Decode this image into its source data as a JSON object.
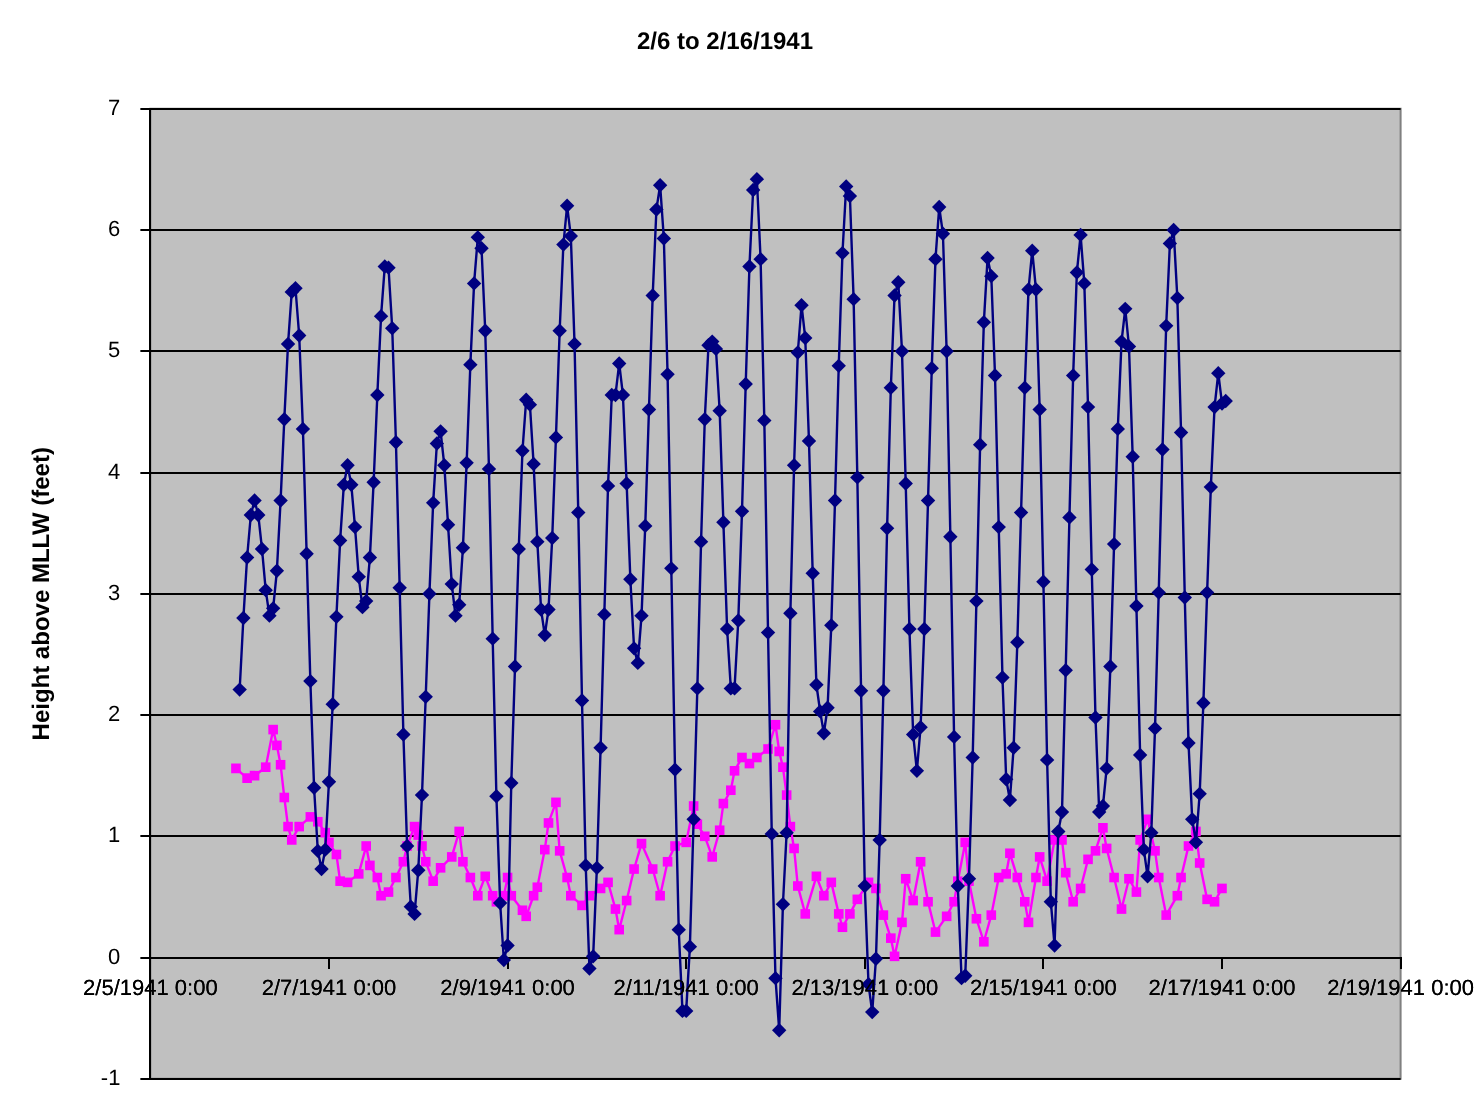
{
  "chart_data": {
    "type": "line",
    "title": "2/6 to 2/16/1941",
    "ylabel": "Height above MLLW (feet)",
    "xlim": [
      "1941-02-05T00:00",
      "1941-02-19T00:00"
    ],
    "xticks": [
      {
        "value": "1941-02-05T00:00",
        "label": "2/5/1941 0:00"
      },
      {
        "value": "1941-02-07T00:00",
        "label": "2/7/1941 0:00"
      },
      {
        "value": "1941-02-09T00:00",
        "label": "2/9/1941 0:00"
      },
      {
        "value": "1941-02-11T00:00",
        "label": "2/11/1941 0:00"
      },
      {
        "value": "1941-02-13T00:00",
        "label": "2/13/1941 0:00"
      },
      {
        "value": "1941-02-15T00:00",
        "label": "2/15/1941 0:00"
      },
      {
        "value": "1941-02-17T00:00",
        "label": "2/17/1941 0:00"
      },
      {
        "value": "1941-02-19T00:00",
        "label": "2/19/1941 0:00"
      }
    ],
    "ylim": [
      -1,
      7
    ],
    "yticks": [
      -1,
      0,
      1,
      2,
      3,
      4,
      5,
      6,
      7
    ],
    "grid": "y",
    "legend": false,
    "line_style": "solid",
    "series": [
      {
        "color": "#000080",
        "marker": "diamond",
        "x": [
          "1941-02-06T00:00",
          "1941-02-06T01:00",
          "1941-02-06T02:00",
          "1941-02-06T03:00",
          "1941-02-06T04:00",
          "1941-02-06T05:00",
          "1941-02-06T06:00",
          "1941-02-06T07:00",
          "1941-02-06T08:00",
          "1941-02-06T09:00",
          "1941-02-06T10:00",
          "1941-02-06T11:00",
          "1941-02-06T12:00",
          "1941-02-06T13:00",
          "1941-02-06T14:00",
          "1941-02-06T15:00",
          "1941-02-06T16:00",
          "1941-02-06T17:00",
          "1941-02-06T18:00",
          "1941-02-06T19:00",
          "1941-02-06T20:00",
          "1941-02-06T21:00",
          "1941-02-06T22:00",
          "1941-02-06T23:00",
          "1941-02-07T00:00",
          "1941-02-07T01:00",
          "1941-02-07T02:00",
          "1941-02-07T03:00",
          "1941-02-07T04:00",
          "1941-02-07T05:00",
          "1941-02-07T06:00",
          "1941-02-07T07:00",
          "1941-02-07T08:00",
          "1941-02-07T09:00",
          "1941-02-07T10:00",
          "1941-02-07T11:00",
          "1941-02-07T12:00",
          "1941-02-07T13:00",
          "1941-02-07T14:00",
          "1941-02-07T15:00",
          "1941-02-07T16:00",
          "1941-02-07T17:00",
          "1941-02-07T18:00",
          "1941-02-07T19:00",
          "1941-02-07T20:00",
          "1941-02-07T21:00",
          "1941-02-07T22:00",
          "1941-02-07T23:00",
          "1941-02-08T00:00",
          "1941-02-08T01:00",
          "1941-02-08T02:00",
          "1941-02-08T03:00",
          "1941-02-08T04:00",
          "1941-02-08T05:00",
          "1941-02-08T06:00",
          "1941-02-08T07:00",
          "1941-02-08T08:00",
          "1941-02-08T09:00",
          "1941-02-08T10:00",
          "1941-02-08T11:00",
          "1941-02-08T12:00",
          "1941-02-08T13:00",
          "1941-02-08T14:00",
          "1941-02-08T15:00",
          "1941-02-08T16:00",
          "1941-02-08T17:00",
          "1941-02-08T18:00",
          "1941-02-08T19:00",
          "1941-02-08T20:00",
          "1941-02-08T21:00",
          "1941-02-08T22:00",
          "1941-02-08T23:00",
          "1941-02-09T00:00",
          "1941-02-09T01:00",
          "1941-02-09T02:00",
          "1941-02-09T03:00",
          "1941-02-09T04:00",
          "1941-02-09T05:00",
          "1941-02-09T06:00",
          "1941-02-09T07:00",
          "1941-02-09T08:00",
          "1941-02-09T09:00",
          "1941-02-09T10:00",
          "1941-02-09T11:00",
          "1941-02-09T12:00",
          "1941-02-09T13:00",
          "1941-02-09T14:00",
          "1941-02-09T15:00",
          "1941-02-09T16:00",
          "1941-02-09T17:00",
          "1941-02-09T18:00",
          "1941-02-09T19:00",
          "1941-02-09T20:00",
          "1941-02-09T21:00",
          "1941-02-09T22:00",
          "1941-02-09T23:00",
          "1941-02-10T00:00",
          "1941-02-10T01:00",
          "1941-02-10T02:00",
          "1941-02-10T03:00",
          "1941-02-10T04:00",
          "1941-02-10T05:00",
          "1941-02-10T06:00",
          "1941-02-10T07:00",
          "1941-02-10T08:00",
          "1941-02-10T09:00",
          "1941-02-10T10:00",
          "1941-02-10T11:00",
          "1941-02-10T12:00",
          "1941-02-10T13:00",
          "1941-02-10T14:00",
          "1941-02-10T15:00",
          "1941-02-10T16:00",
          "1941-02-10T17:00",
          "1941-02-10T18:00",
          "1941-02-10T19:00",
          "1941-02-10T20:00",
          "1941-02-10T21:00",
          "1941-02-10T22:00",
          "1941-02-10T23:00",
          "1941-02-11T00:00",
          "1941-02-11T01:00",
          "1941-02-11T02:00",
          "1941-02-11T03:00",
          "1941-02-11T04:00",
          "1941-02-11T05:00",
          "1941-02-11T06:00",
          "1941-02-11T07:00",
          "1941-02-11T08:00",
          "1941-02-11T09:00",
          "1941-02-11T10:00",
          "1941-02-11T11:00",
          "1941-02-11T12:00",
          "1941-02-11T13:00",
          "1941-02-11T14:00",
          "1941-02-11T15:00",
          "1941-02-11T16:00",
          "1941-02-11T17:00",
          "1941-02-11T18:00",
          "1941-02-11T19:00",
          "1941-02-11T20:00",
          "1941-02-11T21:00",
          "1941-02-11T22:00",
          "1941-02-11T23:00",
          "1941-02-12T00:00",
          "1941-02-12T01:00",
          "1941-02-12T02:00",
          "1941-02-12T03:00",
          "1941-02-12T04:00",
          "1941-02-12T05:00",
          "1941-02-12T06:00",
          "1941-02-12T07:00",
          "1941-02-12T08:00",
          "1941-02-12T09:00",
          "1941-02-12T10:00",
          "1941-02-12T11:00",
          "1941-02-12T12:00",
          "1941-02-12T13:00",
          "1941-02-12T14:00",
          "1941-02-12T15:00",
          "1941-02-12T16:00",
          "1941-02-12T17:00",
          "1941-02-12T18:00",
          "1941-02-12T19:00",
          "1941-02-12T20:00",
          "1941-02-12T21:00",
          "1941-02-12T22:00",
          "1941-02-12T23:00",
          "1941-02-13T00:00",
          "1941-02-13T01:00",
          "1941-02-13T02:00",
          "1941-02-13T03:00",
          "1941-02-13T04:00",
          "1941-02-13T05:00",
          "1941-02-13T06:00",
          "1941-02-13T07:00",
          "1941-02-13T08:00",
          "1941-02-13T09:00",
          "1941-02-13T10:00",
          "1941-02-13T11:00",
          "1941-02-13T12:00",
          "1941-02-13T13:00",
          "1941-02-13T14:00",
          "1941-02-13T15:00",
          "1941-02-13T16:00",
          "1941-02-13T17:00",
          "1941-02-13T18:00",
          "1941-02-13T19:00",
          "1941-02-13T20:00",
          "1941-02-13T21:00",
          "1941-02-13T22:00",
          "1941-02-13T23:00",
          "1941-02-14T00:00",
          "1941-02-14T01:00",
          "1941-02-14T02:00",
          "1941-02-14T03:00",
          "1941-02-14T04:00",
          "1941-02-14T05:00",
          "1941-02-14T06:00",
          "1941-02-14T07:00",
          "1941-02-14T08:00",
          "1941-02-14T09:00",
          "1941-02-14T10:00",
          "1941-02-14T11:00",
          "1941-02-14T12:00",
          "1941-02-14T13:00",
          "1941-02-14T14:00",
          "1941-02-14T15:00",
          "1941-02-14T16:00",
          "1941-02-14T17:00",
          "1941-02-14T18:00",
          "1941-02-14T19:00",
          "1941-02-14T20:00",
          "1941-02-14T21:00",
          "1941-02-14T22:00",
          "1941-02-14T23:00",
          "1941-02-15T00:00",
          "1941-02-15T01:00",
          "1941-02-15T02:00",
          "1941-02-15T03:00",
          "1941-02-15T04:00",
          "1941-02-15T05:00",
          "1941-02-15T06:00",
          "1941-02-15T07:00",
          "1941-02-15T08:00",
          "1941-02-15T09:00",
          "1941-02-15T10:00",
          "1941-02-15T11:00",
          "1941-02-15T12:00",
          "1941-02-15T13:00",
          "1941-02-15T14:00",
          "1941-02-15T15:00",
          "1941-02-15T16:00",
          "1941-02-15T17:00",
          "1941-02-15T18:00",
          "1941-02-15T19:00",
          "1941-02-15T20:00",
          "1941-02-15T21:00",
          "1941-02-15T22:00",
          "1941-02-15T23:00",
          "1941-02-16T00:00",
          "1941-02-16T01:00",
          "1941-02-16T02:00",
          "1941-02-16T03:00",
          "1941-02-16T04:00",
          "1941-02-16T05:00",
          "1941-02-16T06:00",
          "1941-02-16T07:00",
          "1941-02-16T08:00",
          "1941-02-16T09:00",
          "1941-02-16T10:00",
          "1941-02-16T11:00",
          "1941-02-16T12:00",
          "1941-02-16T13:00",
          "1941-02-16T14:00",
          "1941-02-16T15:00",
          "1941-02-16T16:00",
          "1941-02-16T17:00",
          "1941-02-16T18:00",
          "1941-02-16T19:00",
          "1941-02-16T20:00",
          "1941-02-16T21:00",
          "1941-02-16T22:00",
          "1941-02-16T23:00",
          "1941-02-17T00:00",
          "1941-02-17T01:00"
        ],
        "values": [
          2.21,
          2.8,
          3.3,
          3.65,
          3.77,
          3.65,
          3.37,
          3.03,
          2.82,
          2.88,
          3.19,
          3.77,
          4.44,
          5.06,
          5.49,
          5.52,
          5.13,
          4.36,
          3.33,
          2.28,
          1.4,
          0.88,
          0.73,
          0.89,
          1.45,
          2.09,
          2.81,
          3.44,
          3.9,
          4.06,
          3.9,
          3.55,
          3.14,
          2.89,
          2.94,
          3.3,
          3.92,
          4.64,
          5.29,
          5.7,
          5.69,
          5.19,
          4.25,
          3.05,
          1.84,
          0.92,
          0.42,
          0.36,
          0.72,
          1.34,
          2.15,
          3.0,
          3.75,
          4.24,
          4.34,
          4.06,
          3.57,
          3.08,
          2.82,
          2.91,
          3.38,
          4.08,
          4.89,
          5.56,
          5.94,
          5.85,
          5.17,
          4.03,
          2.63,
          1.33,
          0.45,
          -0.02,
          0.1,
          1.44,
          2.4,
          3.37,
          4.18,
          4.6,
          4.56,
          4.07,
          3.43,
          2.87,
          2.66,
          2.87,
          3.46,
          4.29,
          5.17,
          5.88,
          6.2,
          5.95,
          5.06,
          3.67,
          2.12,
          0.76,
          -0.09,
          0.01,
          0.74,
          1.73,
          2.83,
          3.89,
          4.64,
          4.64,
          4.9,
          4.64,
          3.91,
          3.12,
          2.55,
          2.43,
          2.82,
          3.56,
          4.52,
          5.46,
          6.17,
          6.37,
          5.93,
          4.81,
          3.21,
          1.55,
          0.23,
          -0.44,
          -0.44,
          0.09,
          1.14,
          2.22,
          3.43,
          4.44,
          5.05,
          5.08,
          5.02,
          4.51,
          3.59,
          2.71,
          2.22,
          2.22,
          2.78,
          3.68,
          4.73,
          5.7,
          6.33,
          6.42,
          5.76,
          4.43,
          2.68,
          1.02,
          -0.17,
          -0.6,
          0.44,
          1.03,
          2.84,
          4.06,
          4.99,
          5.38,
          5.11,
          4.26,
          3.17,
          2.25,
          2.03,
          1.85,
          2.06,
          2.74,
          3.77,
          4.88,
          5.81,
          6.36,
          6.28,
          5.43,
          3.96,
          2.2,
          0.59,
          -0.22,
          -0.45,
          -0.01,
          0.97,
          2.2,
          3.54,
          4.7,
          5.46,
          5.57,
          5.0,
          3.91,
          2.71,
          1.84,
          1.54,
          1.9,
          2.71,
          3.77,
          4.86,
          5.76,
          6.19,
          5.97,
          5.0,
          3.47,
          1.82,
          0.59,
          -0.17,
          -0.15,
          0.65,
          1.65,
          2.94,
          4.23,
          5.24,
          5.77,
          5.62,
          4.8,
          3.55,
          2.31,
          1.47,
          1.3,
          1.73,
          2.6,
          3.67,
          4.7,
          5.51,
          5.83,
          5.51,
          4.52,
          3.1,
          1.63,
          0.46,
          0.1,
          1.04,
          1.2,
          2.37,
          3.63,
          4.8,
          5.65,
          5.96,
          5.56,
          4.54,
          3.2,
          1.98,
          1.2,
          1.25,
          1.56,
          2.4,
          3.41,
          4.36,
          5.08,
          5.35,
          5.04,
          4.13,
          2.9,
          1.67,
          0.89,
          0.67,
          1.03,
          1.89,
          3.01,
          4.19,
          5.21,
          5.89,
          6.0,
          5.44,
          4.33,
          2.97,
          1.77,
          1.14,
          0.95,
          1.35,
          2.1,
          3.01,
          3.88,
          4.54,
          4.82,
          4.57,
          4.59
        ]
      },
      {
        "color": "#ff00ff",
        "marker": "square",
        "x": [
          "1941-02-05T23:00",
          "1941-02-06T02:00",
          "1941-02-06T04:00",
          "1941-02-06T07:00",
          "1941-02-06T09:00",
          "1941-02-06T10:00",
          "1941-02-06T11:00",
          "1941-02-06T12:00",
          "1941-02-06T13:00",
          "1941-02-06T14:00",
          "1941-02-06T16:00",
          "1941-02-06T19:00",
          "1941-02-06T21:00",
          "1941-02-06T23:00",
          "1941-02-07T00:00",
          "1941-02-07T02:00",
          "1941-02-07T03:00",
          "1941-02-07T05:00",
          "1941-02-07T08:00",
          "1941-02-07T10:00",
          "1941-02-07T11:00",
          "1941-02-07T13:00",
          "1941-02-07T14:00",
          "1941-02-07T16:00",
          "1941-02-07T18:00",
          "1941-02-07T20:00",
          "1941-02-07T21:00",
          "1941-02-07T23:00",
          "1941-02-08T00:00",
          "1941-02-08T01:00",
          "1941-02-08T02:00",
          "1941-02-08T04:00",
          "1941-02-08T06:00",
          "1941-02-08T09:00",
          "1941-02-08T11:00",
          "1941-02-08T12:00",
          "1941-02-08T14:00",
          "1941-02-08T16:00",
          "1941-02-08T18:00",
          "1941-02-08T20:00",
          "1941-02-08T21:00",
          "1941-02-08T23:00",
          "1941-02-09T00:00",
          "1941-02-09T01:00",
          "1941-02-09T04:00",
          "1941-02-09T05:00",
          "1941-02-09T07:00",
          "1941-02-09T08:00",
          "1941-02-09T10:00",
          "1941-02-09T11:00",
          "1941-02-09T13:00",
          "1941-02-09T14:00",
          "1941-02-09T16:00",
          "1941-02-09T17:00",
          "1941-02-09T20:00",
          "1941-02-09T22:00",
          "1941-02-10T01:00",
          "1941-02-10T03:00",
          "1941-02-10T05:00",
          "1941-02-10T06:00",
          "1941-02-10T08:00",
          "1941-02-10T10:00",
          "1941-02-10T12:00",
          "1941-02-10T15:00",
          "1941-02-10T17:00",
          "1941-02-10T19:00",
          "1941-02-10T21:00",
          "1941-02-11T00:00",
          "1941-02-11T02:00",
          "1941-02-11T03:00",
          "1941-02-11T05:00",
          "1941-02-11T07:00",
          "1941-02-11T09:00",
          "1941-02-11T10:00",
          "1941-02-11T12:00",
          "1941-02-11T13:00",
          "1941-02-11T15:00",
          "1941-02-11T17:00",
          "1941-02-11T19:00",
          "1941-02-11T22:00",
          "1941-02-12T00:00",
          "1941-02-12T01:00",
          "1941-02-12T02:00",
          "1941-02-12T03:00",
          "1941-02-12T04:00",
          "1941-02-12T05:00",
          "1941-02-12T06:00",
          "1941-02-12T08:00",
          "1941-02-12T11:00",
          "1941-02-12T13:00",
          "1941-02-12T15:00",
          "1941-02-12T17:00",
          "1941-02-12T18:00",
          "1941-02-12T20:00",
          "1941-02-12T22:00",
          "1941-02-13T01:00",
          "1941-02-13T03:00",
          "1941-02-13T05:00",
          "1941-02-13T07:00",
          "1941-02-13T08:00",
          "1941-02-13T10:00",
          "1941-02-13T11:00",
          "1941-02-13T13:00",
          "1941-02-13T15:00",
          "1941-02-13T17:00",
          "1941-02-13T19:00",
          "1941-02-13T22:00",
          "1941-02-14T00:00",
          "1941-02-14T01:00",
          "1941-02-14T03:00",
          "1941-02-14T04:00",
          "1941-02-14T06:00",
          "1941-02-14T08:00",
          "1941-02-14T10:00",
          "1941-02-14T12:00",
          "1941-02-14T14:00",
          "1941-02-14T15:00",
          "1941-02-14T17:00",
          "1941-02-14T19:00",
          "1941-02-14T20:00",
          "1941-02-14T22:00",
          "1941-02-14T23:00",
          "1941-02-15T01:00",
          "1941-02-15T03:00",
          "1941-02-15T05:00",
          "1941-02-15T06:00",
          "1941-02-15T08:00",
          "1941-02-15T10:00",
          "1941-02-15T12:00",
          "1941-02-15T14:00",
          "1941-02-15T16:00",
          "1941-02-15T17:00",
          "1941-02-15T19:00",
          "1941-02-15T21:00",
          "1941-02-15T23:00",
          "1941-02-16T01:00",
          "1941-02-16T02:00",
          "1941-02-16T04:00",
          "1941-02-16T06:00",
          "1941-02-16T07:00",
          "1941-02-16T09:00",
          "1941-02-16T12:00",
          "1941-02-16T13:00",
          "1941-02-16T15:00",
          "1941-02-16T17:00",
          "1941-02-16T18:00",
          "1941-02-16T20:00",
          "1941-02-16T22:00",
          "1941-02-17T00:00"
        ],
        "values": [
          1.56,
          1.48,
          1.5,
          1.57,
          1.88,
          1.75,
          1.59,
          1.32,
          1.08,
          0.97,
          1.08,
          1.16,
          1.12,
          1.03,
          0.95,
          0.85,
          0.63,
          0.62,
          0.69,
          0.92,
          0.76,
          0.66,
          0.51,
          0.54,
          0.66,
          0.79,
          0.92,
          1.08,
          1.01,
          0.92,
          0.79,
          0.63,
          0.74,
          0.83,
          1.04,
          0.79,
          0.66,
          0.51,
          0.67,
          0.51,
          0.46,
          0.51,
          0.66,
          0.51,
          0.39,
          0.34,
          0.51,
          0.58,
          0.89,
          1.11,
          1.28,
          0.88,
          0.66,
          0.51,
          0.43,
          0.51,
          0.57,
          0.62,
          0.4,
          0.23,
          0.47,
          0.73,
          0.94,
          0.73,
          0.51,
          0.79,
          0.92,
          0.95,
          1.25,
          1.1,
          1.0,
          0.83,
          1.05,
          1.27,
          1.38,
          1.54,
          1.65,
          1.6,
          1.65,
          1.72,
          1.92,
          1.7,
          1.57,
          1.34,
          1.08,
          0.9,
          0.59,
          0.36,
          0.67,
          0.51,
          0.62,
          0.36,
          0.25,
          0.36,
          0.48,
          0.62,
          0.57,
          0.35,
          0.16,
          0.01,
          0.29,
          0.65,
          0.47,
          0.79,
          0.46,
          0.21,
          0.34,
          0.46,
          0.63,
          0.95,
          0.63,
          0.32,
          0.13,
          0.35,
          0.66,
          0.69,
          0.86,
          0.66,
          0.46,
          0.29,
          0.66,
          0.83,
          0.63,
          0.97,
          0.97,
          0.7,
          0.46,
          0.57,
          0.81,
          0.88,
          1.07,
          0.9,
          0.66,
          0.4,
          0.65,
          0.54,
          0.97,
          1.14,
          0.88,
          0.66,
          0.35,
          0.51,
          0.66,
          0.92,
          1.04,
          0.78,
          0.48,
          0.46,
          0.57
        ]
      }
    ]
  }
}
